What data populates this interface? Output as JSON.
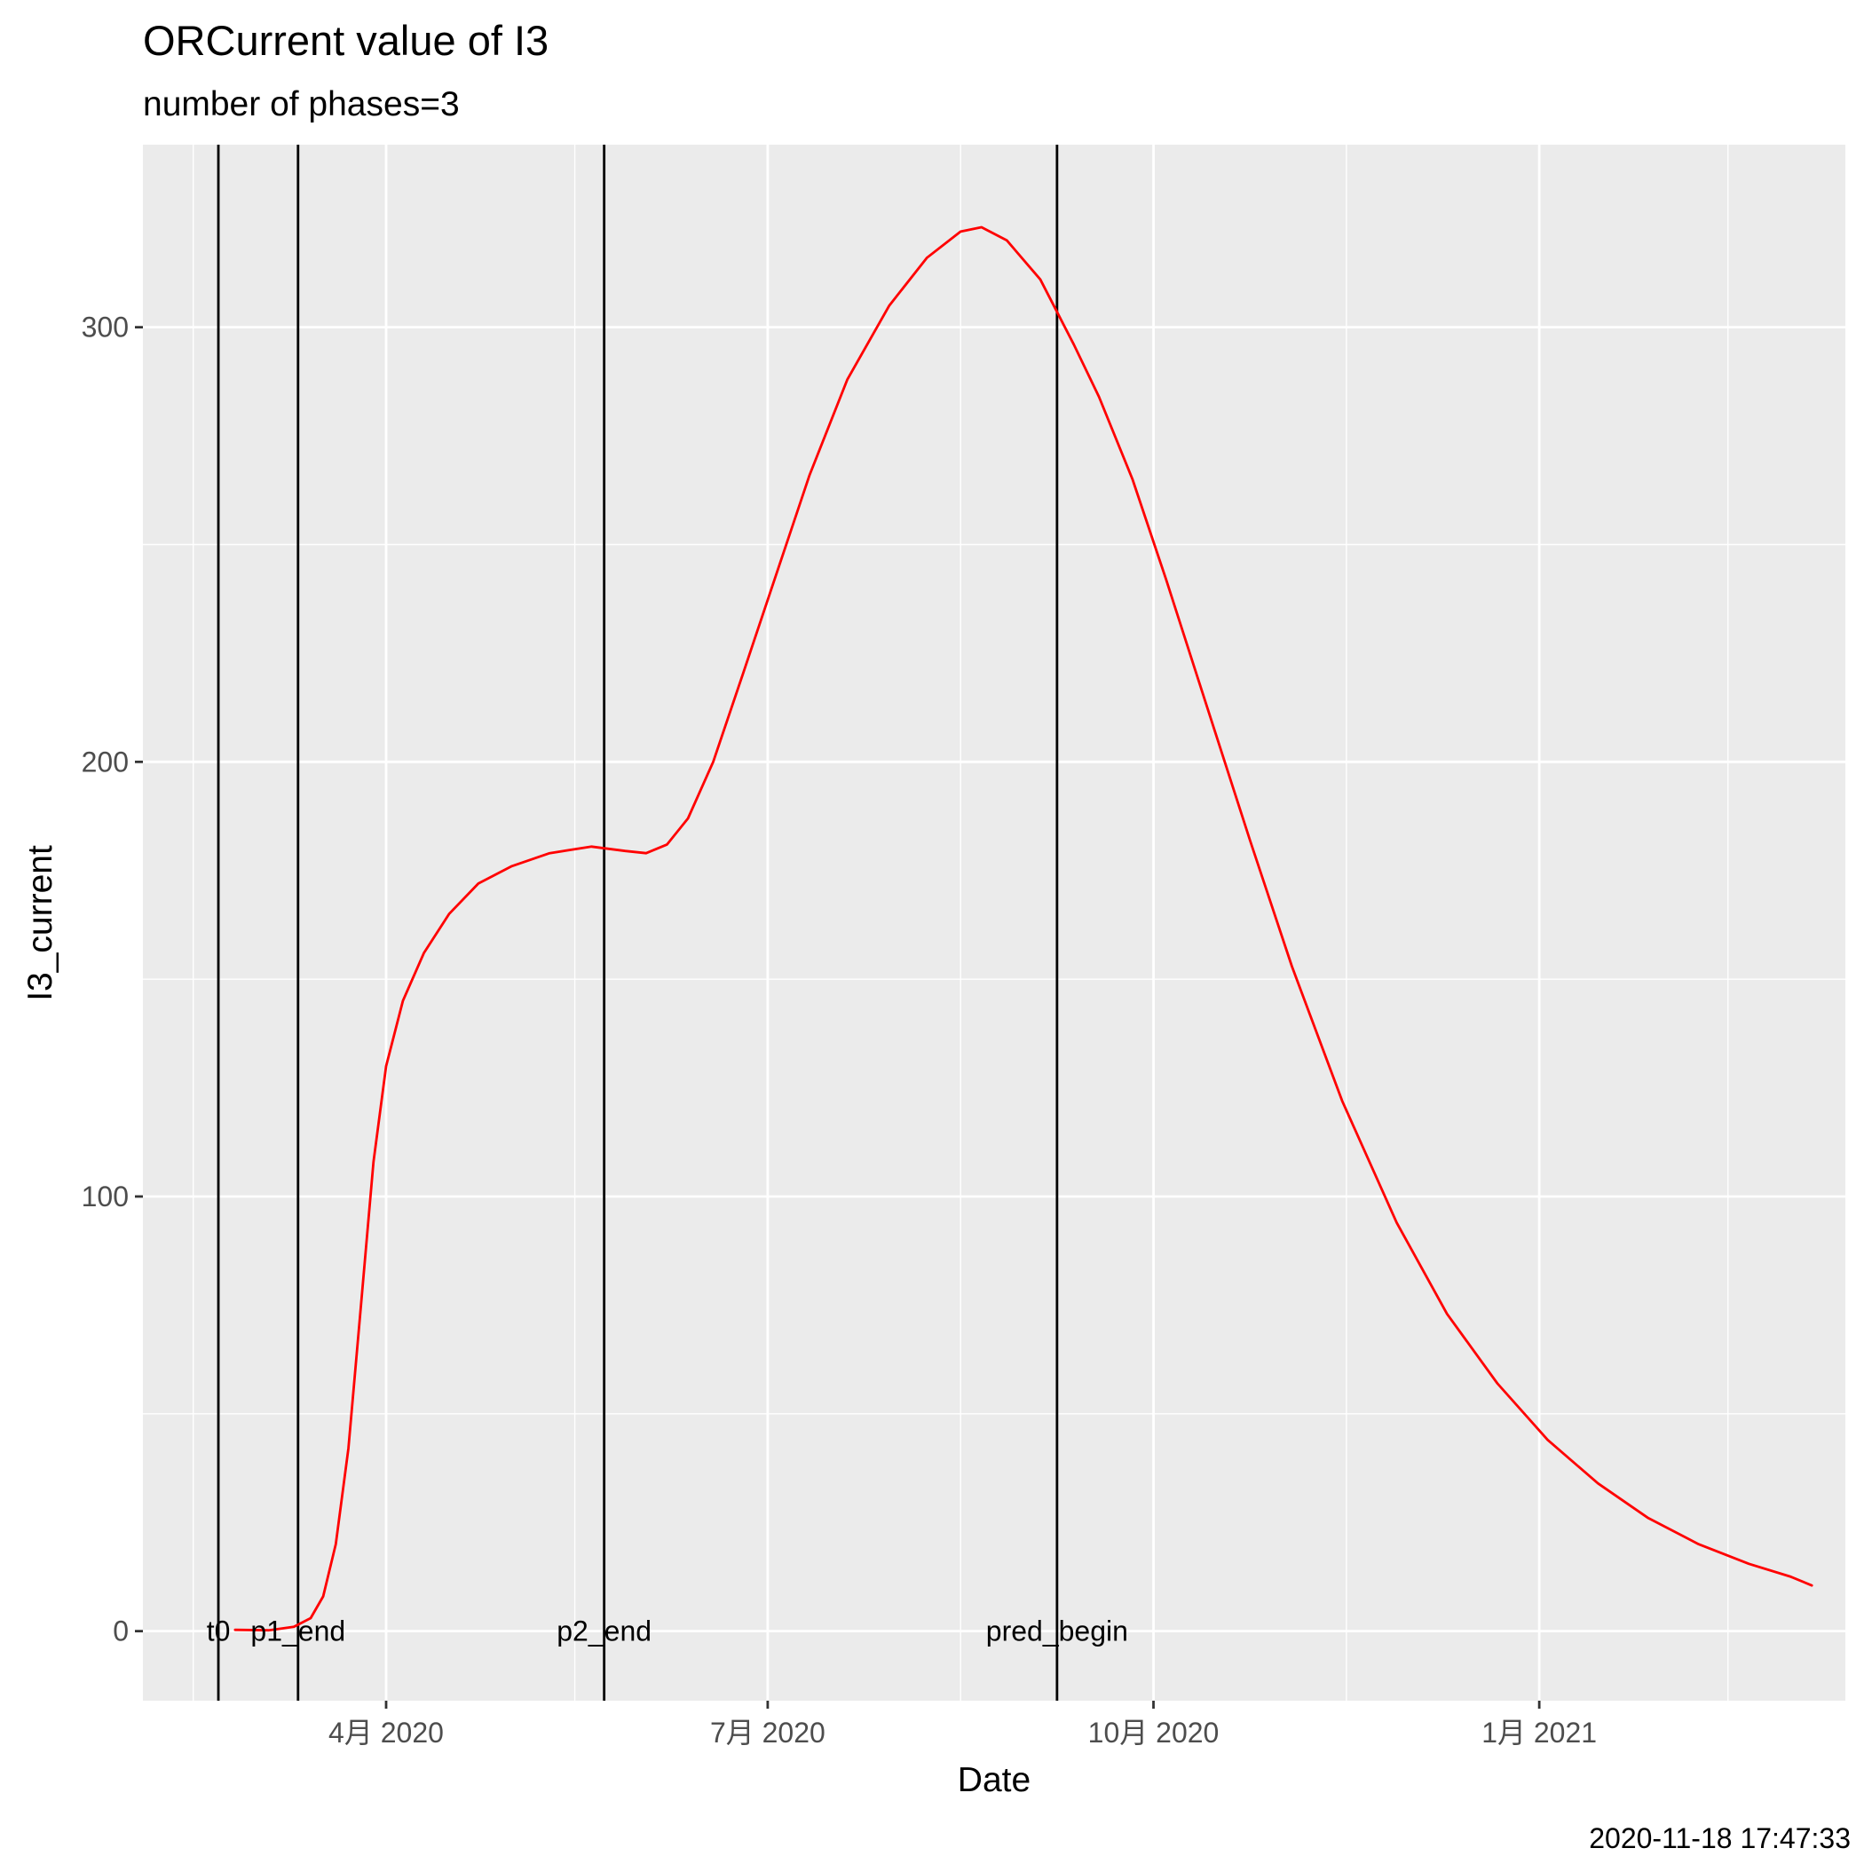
{
  "chart_data": {
    "type": "line",
    "title": "ORCurrent value of I3",
    "subtitle": "number of phases=3",
    "xlabel": "Date",
    "ylabel": "I3_current",
    "caption": "2020-11-18 17:47:33",
    "x_axis_type": "date",
    "xlim": [
      "2020-02-03",
      "2021-03-15"
    ],
    "ylim": [
      -16,
      342
    ],
    "x_ticks": [
      {
        "date": "2020-04-01",
        "label": "4月 2020"
      },
      {
        "date": "2020-07-01",
        "label": "7月 2020"
      },
      {
        "date": "2020-10-01",
        "label": "10月 2020"
      },
      {
        "date": "2021-01-01",
        "label": "1月 2021"
      }
    ],
    "x_minor_ticks": [
      "2020-02-15",
      "2020-05-16",
      "2020-08-16",
      "2020-11-16",
      "2021-02-15"
    ],
    "y_ticks": [
      0,
      100,
      200,
      300
    ],
    "y_minor_ticks": [
      50,
      150,
      250
    ],
    "grid": true,
    "background": "#ebebeb",
    "grid_color": "#ffffff",
    "series": [
      {
        "color": "#ff0000",
        "points": [
          [
            "2020-02-25",
            0.3
          ],
          [
            "2020-03-04",
            0.2
          ],
          [
            "2020-03-10",
            1.0
          ],
          [
            "2020-03-14",
            3.0
          ],
          [
            "2020-03-17",
            8.0
          ],
          [
            "2020-03-20",
            20.0
          ],
          [
            "2020-03-23",
            42.0
          ],
          [
            "2020-03-26",
            75.0
          ],
          [
            "2020-03-29",
            108.0
          ],
          [
            "2020-04-01",
            130.0
          ],
          [
            "2020-04-05",
            145.0
          ],
          [
            "2020-04-10",
            156.0
          ],
          [
            "2020-04-16",
            165.0
          ],
          [
            "2020-04-23",
            172.0
          ],
          [
            "2020-05-01",
            176.0
          ],
          [
            "2020-05-10",
            179.0
          ],
          [
            "2020-05-20",
            180.5
          ],
          [
            "2020-05-28",
            179.5
          ],
          [
            "2020-06-02",
            179.0
          ],
          [
            "2020-06-07",
            181.0
          ],
          [
            "2020-06-12",
            187.0
          ],
          [
            "2020-06-18",
            200.0
          ],
          [
            "2020-06-25",
            220.0
          ],
          [
            "2020-07-03",
            243.0
          ],
          [
            "2020-07-11",
            266.0
          ],
          [
            "2020-07-20",
            288.0
          ],
          [
            "2020-07-30",
            305.0
          ],
          [
            "2020-08-08",
            316.0
          ],
          [
            "2020-08-16",
            322.0
          ],
          [
            "2020-08-21",
            323.0
          ],
          [
            "2020-08-27",
            320.0
          ],
          [
            "2020-09-04",
            311.0
          ],
          [
            "2020-09-12",
            296.0
          ],
          [
            "2020-09-18",
            284.0
          ],
          [
            "2020-09-26",
            265.0
          ],
          [
            "2020-10-04",
            242.0
          ],
          [
            "2020-10-14",
            212.0
          ],
          [
            "2020-10-24",
            182.0
          ],
          [
            "2020-11-03",
            153.0
          ],
          [
            "2020-11-15",
            122.0
          ],
          [
            "2020-11-28",
            94.0
          ],
          [
            "2020-12-10",
            73.0
          ],
          [
            "2020-12-22",
            57.0
          ],
          [
            "2021-01-03",
            44.0
          ],
          [
            "2021-01-15",
            34.0
          ],
          [
            "2021-01-27",
            26.0
          ],
          [
            "2021-02-08",
            20.0
          ],
          [
            "2021-02-20",
            15.5
          ],
          [
            "2021-03-02",
            12.5
          ],
          [
            "2021-03-07",
            10.5
          ]
        ]
      }
    ],
    "vlines": [
      {
        "date": "2020-02-21",
        "label": "t0"
      },
      {
        "date": "2020-03-11",
        "label": "p1_end"
      },
      {
        "date": "2020-05-23",
        "label": "p2_end"
      },
      {
        "date": "2020-09-08",
        "label": "pred_begin"
      }
    ],
    "vline_label_y": 0
  }
}
